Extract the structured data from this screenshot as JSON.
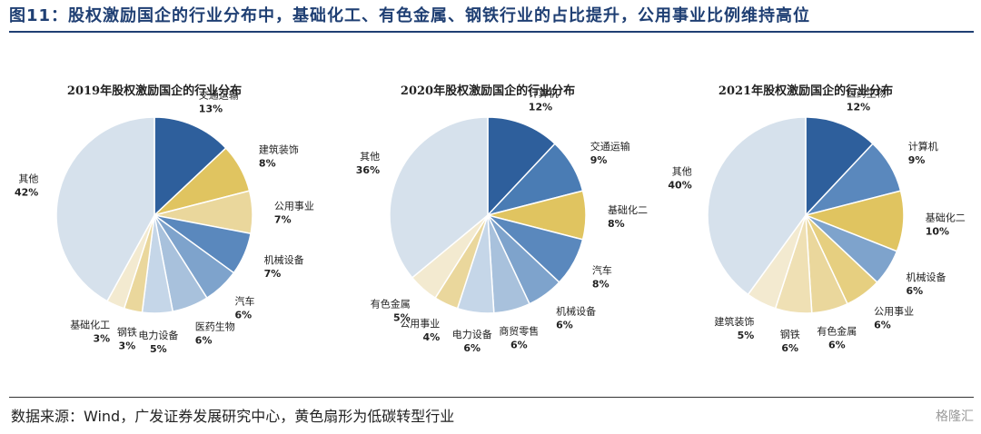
{
  "figure": {
    "title": "图11：股权激励国企的行业分布中，基础化工、有色金属、钢铁行业的占比提升，公用事业比例维持高位",
    "source": "数据来源：Wind，广发证券发展研究中心，黄色扇形为低碳转型行业",
    "watermark": "格隆汇"
  },
  "chart_data": [
    {
      "type": "pie",
      "title": "2019年股权激励国企的行业分布",
      "slices": [
        {
          "label": "交通运输",
          "value": 13,
          "pct_label": "13%",
          "color": "#2e5f9c"
        },
        {
          "label": "建筑装饰",
          "value": 8,
          "pct_label": "8%",
          "color": "#e0c460"
        },
        {
          "label": "公用事业",
          "value": 7,
          "pct_label": "7%",
          "color": "#ead79c"
        },
        {
          "label": "机械设备",
          "value": 7,
          "pct_label": "7%",
          "color": "#5a88bd"
        },
        {
          "label": "汽车",
          "value": 6,
          "pct_label": "6%",
          "color": "#7ea3cc"
        },
        {
          "label": "医药生物",
          "value": 6,
          "pct_label": "6%",
          "color": "#a8c1dc"
        },
        {
          "label": "电力设备",
          "value": 5,
          "pct_label": "5%",
          "color": "#c5d6e8"
        },
        {
          "label": "钢铁",
          "value": 3,
          "pct_label": "3%",
          "color": "#ead79c"
        },
        {
          "label": "基础化工",
          "value": 3,
          "pct_label": "3%",
          "color": "#f3ead0"
        },
        {
          "label": "其他",
          "value": 42,
          "pct_label": "42%",
          "color": "#d6e1ec"
        }
      ]
    },
    {
      "type": "pie",
      "title": "2020年股权激励国企的行业分布",
      "slices": [
        {
          "label": "计算机",
          "value": 12,
          "pct_label": "12%",
          "color": "#2e5f9c"
        },
        {
          "label": "交通运输",
          "value": 9,
          "pct_label": "9%",
          "color": "#4a7cb4"
        },
        {
          "label": "基础化二",
          "value": 8,
          "pct_label": "8%",
          "color": "#e0c460"
        },
        {
          "label": "汽车",
          "value": 8,
          "pct_label": "8%",
          "color": "#5a88bd"
        },
        {
          "label": "机械设备",
          "value": 6,
          "pct_label": "6%",
          "color": "#7ea3cc"
        },
        {
          "label": "商贸零售",
          "value": 6,
          "pct_label": "6%",
          "color": "#a8c1dc"
        },
        {
          "label": "电力设备",
          "value": 6,
          "pct_label": "6%",
          "color": "#c5d6e8"
        },
        {
          "label": "公用事业",
          "value": 4,
          "pct_label": "4%",
          "color": "#ead79c"
        },
        {
          "label": "有色金属",
          "value": 5,
          "pct_label": "5%",
          "color": "#f3ead0"
        },
        {
          "label": "其他",
          "value": 36,
          "pct_label": "36%",
          "color": "#d6e1ec"
        }
      ]
    },
    {
      "type": "pie",
      "title": "2021年股权激励国企的行业分布",
      "slices": [
        {
          "label": "医药生物",
          "value": 12,
          "pct_label": "12%",
          "color": "#2e5f9c"
        },
        {
          "label": "计算机",
          "value": 9,
          "pct_label": "9%",
          "color": "#5a88bd"
        },
        {
          "label": "基础化二",
          "value": 10,
          "pct_label": "10%",
          "color": "#e0c460"
        },
        {
          "label": "机械设备",
          "value": 6,
          "pct_label": "6%",
          "color": "#7ea3cc"
        },
        {
          "label": "公用事业",
          "value": 6,
          "pct_label": "6%",
          "color": "#e6cf80"
        },
        {
          "label": "有色金属",
          "value": 6,
          "pct_label": "6%",
          "color": "#ead79c"
        },
        {
          "label": "钢铁",
          "value": 6,
          "pct_label": "6%",
          "color": "#efe0b4"
        },
        {
          "label": "建筑装饰",
          "value": 5,
          "pct_label": "5%",
          "color": "#f3ead0"
        },
        {
          "label": "其他",
          "value": 40,
          "pct_label": "40%",
          "color": "#d6e1ec"
        }
      ]
    }
  ]
}
